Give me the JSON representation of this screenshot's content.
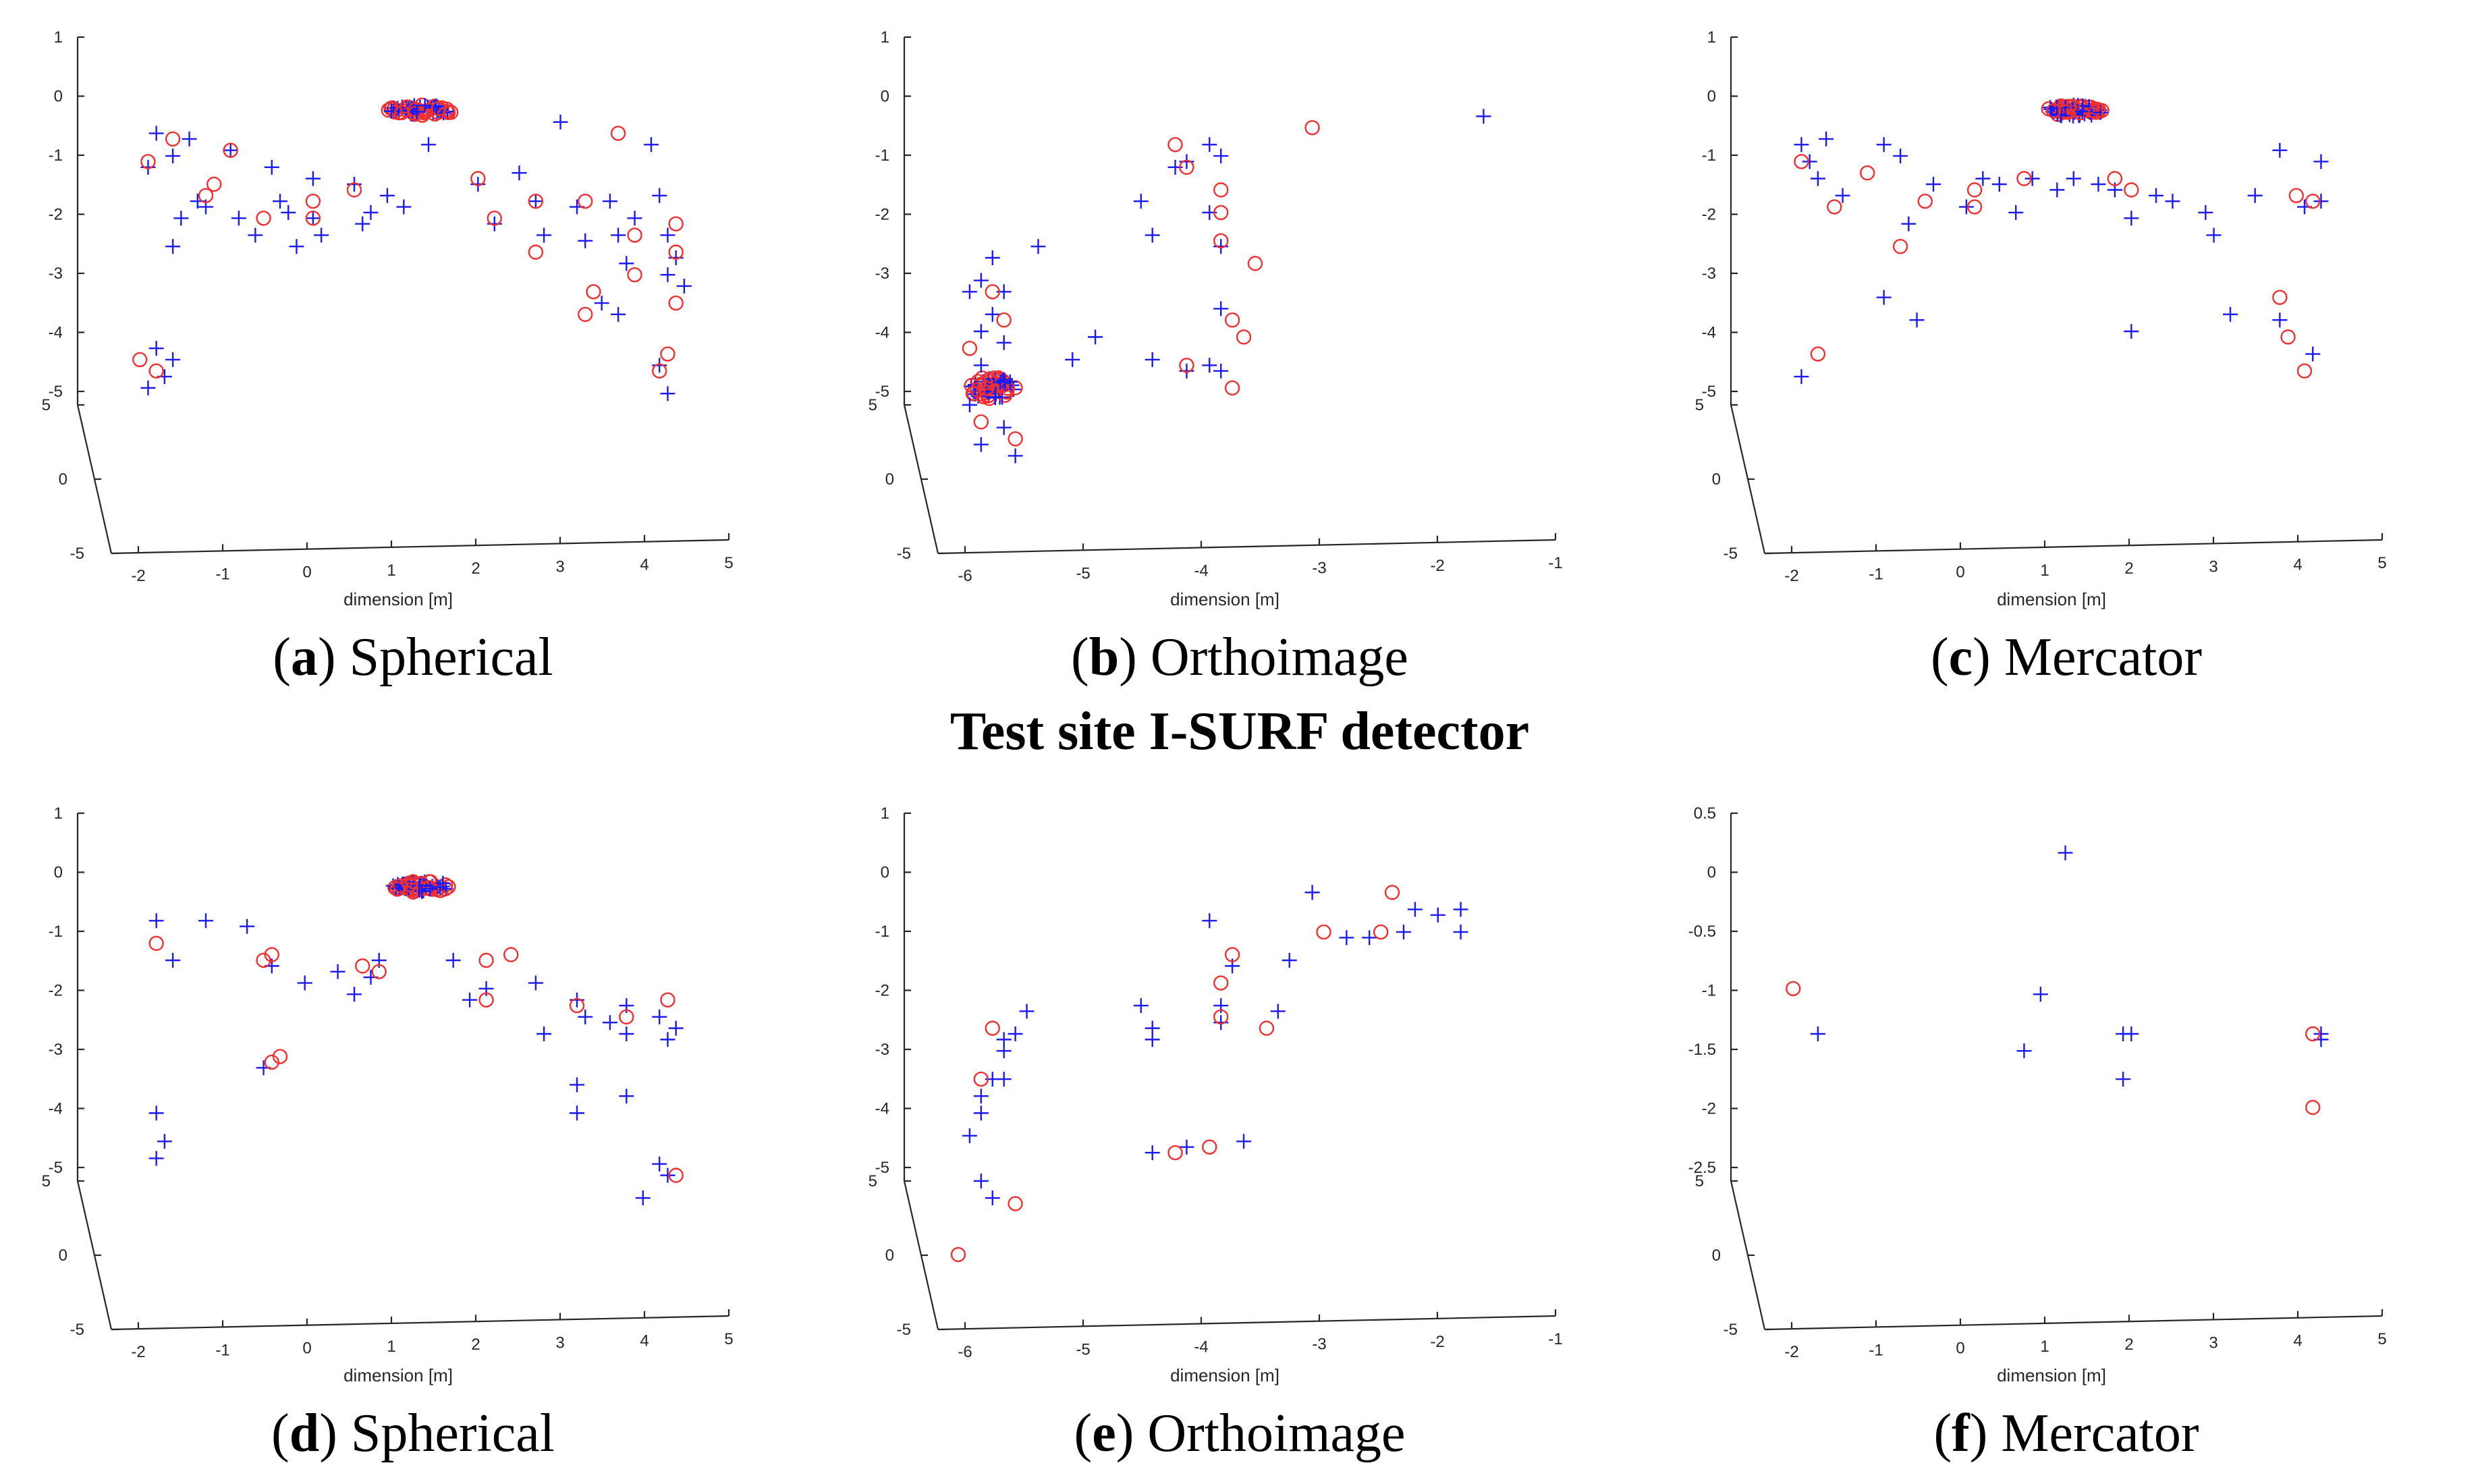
{
  "figure": {
    "middle_title": "Test site I-SURF detector",
    "colors": {
      "axis": "#262626",
      "plus_marker": "#1a1af5",
      "circle_marker": "#f03030"
    }
  },
  "chart_data": [
    {
      "type": "scatter",
      "id": "a",
      "caption": {
        "letter": "a",
        "open": "(",
        "close": ")",
        "text": " Spherical"
      },
      "xlabel": "dimension [m]",
      "x_ticks": [
        "-2",
        "-1",
        "0",
        "1",
        "2",
        "3",
        "4",
        "5"
      ],
      "xlim": [
        -2.2,
        5
      ],
      "z_ticks": [
        "1",
        "0",
        "-1",
        "-2",
        "-3",
        "-4",
        "-5"
      ],
      "zlim": [
        -5.5,
        1
      ],
      "y_ticks": [
        "5",
        "0",
        "-5"
      ],
      "plus_points": [
        [
          -2.0,
          -1.3
        ],
        [
          -1.9,
          -0.7
        ],
        [
          -1.7,
          -1.1
        ],
        [
          -1.6,
          -2.2
        ],
        [
          -1.7,
          -2.7
        ],
        [
          -1.5,
          -0.8
        ],
        [
          -1.4,
          -1.9
        ],
        [
          -1.3,
          -2.0
        ],
        [
          -1.0,
          -1.0
        ],
        [
          -0.9,
          -2.2
        ],
        [
          -0.7,
          -2.5
        ],
        [
          -0.5,
          -1.3
        ],
        [
          -0.4,
          -1.9
        ],
        [
          -0.3,
          -2.1
        ],
        [
          -0.2,
          -2.7
        ],
        [
          0.0,
          -1.5
        ],
        [
          0.0,
          -2.2
        ],
        [
          0.1,
          -2.5
        ],
        [
          0.5,
          -1.6
        ],
        [
          0.6,
          -2.3
        ],
        [
          0.7,
          -2.1
        ],
        [
          0.9,
          -1.8
        ],
        [
          1.1,
          -2.0
        ],
        [
          1.4,
          -0.9
        ],
        [
          2.0,
          -1.6
        ],
        [
          2.2,
          -2.3
        ],
        [
          2.5,
          -1.4
        ],
        [
          2.7,
          -1.9
        ],
        [
          2.8,
          -2.5
        ],
        [
          3.0,
          -0.5
        ],
        [
          3.2,
          -2.0
        ],
        [
          3.3,
          -2.6
        ],
        [
          3.5,
          -3.7
        ],
        [
          3.6,
          -1.9
        ],
        [
          3.7,
          -2.5
        ],
        [
          3.8,
          -3.0
        ],
        [
          3.9,
          -2.2
        ],
        [
          3.7,
          -3.9
        ],
        [
          4.2,
          -1.8
        ],
        [
          4.3,
          -2.5
        ],
        [
          4.3,
          -3.2
        ],
        [
          4.4,
          -2.9
        ],
        [
          4.5,
          -3.4
        ],
        [
          4.2,
          -4.8
        ],
        [
          4.3,
          -5.3
        ],
        [
          4.1,
          -0.9
        ],
        [
          -2.0,
          -5.2
        ],
        [
          -1.9,
          -4.5
        ],
        [
          -1.8,
          -5.0
        ],
        [
          -1.7,
          -4.7
        ]
      ],
      "circle_points": [
        [
          -2.0,
          -1.2
        ],
        [
          -1.7,
          -0.8
        ],
        [
          -1.3,
          -1.8
        ],
        [
          -1.0,
          -1.0
        ],
        [
          -1.2,
          -1.6
        ],
        [
          -0.6,
          -2.2
        ],
        [
          0.0,
          -1.9
        ],
        [
          0.0,
          -2.2
        ],
        [
          0.5,
          -1.7
        ],
        [
          2.0,
          -1.5
        ],
        [
          2.2,
          -2.2
        ],
        [
          2.7,
          -1.9
        ],
        [
          2.7,
          -2.8
        ],
        [
          3.3,
          -1.9
        ],
        [
          3.4,
          -3.5
        ],
        [
          3.3,
          -3.9
        ],
        [
          3.7,
          -0.7
        ],
        [
          3.9,
          -2.5
        ],
        [
          3.9,
          -3.2
        ],
        [
          4.4,
          -2.3
        ],
        [
          4.4,
          -2.8
        ],
        [
          4.4,
          -3.7
        ],
        [
          4.3,
          -4.6
        ],
        [
          4.2,
          -4.9
        ],
        [
          -2.1,
          -4.7
        ],
        [
          -1.9,
          -4.9
        ]
      ],
      "cluster": {
        "x": 1.3,
        "z": -0.3,
        "spread_x": 0.4,
        "spread_z": 0.1
      }
    },
    {
      "type": "scatter",
      "id": "b",
      "caption": {
        "letter": "b",
        "open": "(",
        "close": ")",
        "text": " Orthoimage"
      },
      "xlabel": "dimension [m]",
      "x_ticks": [
        "-6",
        "-5",
        "-4",
        "-3",
        "-2",
        "-1"
      ],
      "xlim": [
        -6.2,
        -1
      ],
      "z_ticks": [
        "1",
        "0",
        "-1",
        "-2",
        "-3",
        "-4",
        "-5"
      ],
      "zlim": [
        -5.5,
        1
      ],
      "y_ticks": [
        "5",
        "0",
        "-5"
      ],
      "plus_points": [
        [
          -6.1,
          -3.5
        ],
        [
          -6.0,
          -4.2
        ],
        [
          -6.0,
          -4.8
        ],
        [
          -6.1,
          -5.5
        ],
        [
          -5.9,
          -2.9
        ],
        [
          -5.8,
          -3.5
        ],
        [
          -5.9,
          -3.9
        ],
        [
          -5.8,
          -5.9
        ],
        [
          -6.0,
          -6.2
        ],
        [
          -5.7,
          -6.4
        ],
        [
          -5.5,
          -2.7
        ],
        [
          -5.2,
          -4.7
        ],
        [
          -5.0,
          -4.3
        ],
        [
          -4.5,
          -2.5
        ],
        [
          -4.6,
          -1.9
        ],
        [
          -4.3,
          -1.3
        ],
        [
          -4.2,
          -1.2
        ],
        [
          -4.0,
          -0.9
        ],
        [
          -3.9,
          -1.1
        ],
        [
          -4.0,
          -2.1
        ],
        [
          -3.9,
          -2.7
        ],
        [
          -3.9,
          -3.8
        ],
        [
          -3.9,
          -4.9
        ],
        [
          -4.5,
          -4.7
        ],
        [
          -4.2,
          -4.9
        ],
        [
          -4.0,
          -4.8
        ],
        [
          -1.6,
          -0.4
        ],
        [
          -6.0,
          -3.3
        ],
        [
          -5.8,
          -4.4
        ]
      ],
      "circle_points": [
        [
          -6.1,
          -4.5
        ],
        [
          -5.9,
          -3.5
        ],
        [
          -5.8,
          -4.0
        ],
        [
          -6.0,
          -5.8
        ],
        [
          -5.7,
          -6.1
        ],
        [
          -4.3,
          -0.9
        ],
        [
          -4.2,
          -1.3
        ],
        [
          -3.9,
          -1.7
        ],
        [
          -3.9,
          -2.1
        ],
        [
          -3.9,
          -2.6
        ],
        [
          -3.8,
          -4.0
        ],
        [
          -3.7,
          -4.3
        ],
        [
          -3.8,
          -5.2
        ],
        [
          -3.6,
          -3.0
        ],
        [
          -4.2,
          -4.8
        ],
        [
          -3.1,
          -0.6
        ]
      ],
      "cluster": {
        "x": -5.9,
        "z": -5.2,
        "spread_x": 0.2,
        "spread_z": 0.2
      }
    },
    {
      "type": "scatter",
      "id": "c",
      "caption": {
        "letter": "c",
        "open": "(",
        "close": ")",
        "text": " Mercator"
      },
      "xlabel": "dimension [m]",
      "x_ticks": [
        "-2",
        "-1",
        "0",
        "1",
        "2",
        "3",
        "4",
        "5"
      ],
      "xlim": [
        -2.2,
        5
      ],
      "z_ticks": [
        "1",
        "0",
        "-1",
        "-2",
        "-3",
        "-4",
        "-5"
      ],
      "zlim": [
        -5.5,
        1
      ],
      "y_ticks": [
        "5",
        "0",
        "-5"
      ],
      "plus_points": [
        [
          -2.0,
          -0.9
        ],
        [
          -1.9,
          -1.2
        ],
        [
          -1.7,
          -0.8
        ],
        [
          -1.8,
          -1.5
        ],
        [
          -1.5,
          -1.8
        ],
        [
          -1.0,
          -0.9
        ],
        [
          -0.8,
          -1.1
        ],
        [
          -0.7,
          -2.3
        ],
        [
          -0.4,
          -1.6
        ],
        [
          0.0,
          -2.0
        ],
        [
          0.2,
          -1.5
        ],
        [
          0.4,
          -1.6
        ],
        [
          0.6,
          -2.1
        ],
        [
          0.8,
          -1.5
        ],
        [
          1.1,
          -1.7
        ],
        [
          1.3,
          -1.5
        ],
        [
          1.6,
          -1.6
        ],
        [
          1.8,
          -1.7
        ],
        [
          2.0,
          -2.2
        ],
        [
          2.3,
          -1.8
        ],
        [
          2.5,
          -1.9
        ],
        [
          2.9,
          -2.1
        ],
        [
          3.0,
          -2.5
        ],
        [
          3.5,
          -1.8
        ],
        [
          3.8,
          -1.0
        ],
        [
          4.1,
          -2.0
        ],
        [
          4.3,
          -1.9
        ],
        [
          4.3,
          -1.2
        ],
        [
          -0.6,
          -4.0
        ],
        [
          2.0,
          -4.2
        ],
        [
          3.2,
          -3.9
        ],
        [
          3.8,
          -4.0
        ],
        [
          4.2,
          -4.6
        ],
        [
          -2.0,
          -5.0
        ],
        [
          -1.0,
          -3.6
        ]
      ],
      "circle_points": [
        [
          -2.0,
          -1.2
        ],
        [
          -1.6,
          -2.0
        ],
        [
          -1.2,
          -1.4
        ],
        [
          -0.8,
          -2.7
        ],
        [
          -0.5,
          -1.9
        ],
        [
          0.1,
          -1.7
        ],
        [
          0.1,
          -2.0
        ],
        [
          0.7,
          -1.5
        ],
        [
          1.8,
          -1.5
        ],
        [
          2.0,
          -1.7
        ],
        [
          4.0,
          -1.8
        ],
        [
          4.2,
          -1.9
        ],
        [
          3.8,
          -3.6
        ],
        [
          3.9,
          -4.3
        ],
        [
          4.1,
          -4.9
        ],
        [
          -1.8,
          -4.6
        ]
      ],
      "cluster": {
        "x": 1.3,
        "z": -0.3,
        "spread_x": 0.35,
        "spread_z": 0.1
      }
    },
    {
      "type": "scatter",
      "id": "d",
      "caption": {
        "letter": "d",
        "open": "(",
        "close": ")",
        "text": " Spherical"
      },
      "xlabel": "dimension [m]",
      "x_ticks": [
        "-2",
        "-1",
        "0",
        "1",
        "2",
        "3",
        "4",
        "5"
      ],
      "xlim": [
        -2.2,
        5
      ],
      "z_ticks": [
        "1",
        "0",
        "-1",
        "-2",
        "-3",
        "-4",
        "-5"
      ],
      "zlim": [
        -5.5,
        1
      ],
      "y_ticks": [
        "5",
        "0",
        "-5"
      ],
      "plus_points": [
        [
          -1.9,
          -0.9
        ],
        [
          -1.7,
          -1.6
        ],
        [
          -1.3,
          -0.9
        ],
        [
          -0.8,
          -1.0
        ],
        [
          -0.5,
          -1.7
        ],
        [
          -0.1,
          -2.0
        ],
        [
          0.3,
          -1.8
        ],
        [
          0.5,
          -2.2
        ],
        [
          0.7,
          -1.9
        ],
        [
          0.8,
          -1.6
        ],
        [
          1.7,
          -1.6
        ],
        [
          1.9,
          -2.3
        ],
        [
          2.1,
          -2.1
        ],
        [
          2.7,
          -2.0
        ],
        [
          2.8,
          -2.9
        ],
        [
          3.2,
          -2.3
        ],
        [
          3.3,
          -2.6
        ],
        [
          3.2,
          -3.8
        ],
        [
          3.2,
          -4.3
        ],
        [
          3.6,
          -2.7
        ],
        [
          3.8,
          -2.4
        ],
        [
          3.8,
          -2.9
        ],
        [
          4.2,
          -2.6
        ],
        [
          4.3,
          -3.0
        ],
        [
          4.4,
          -2.8
        ],
        [
          3.8,
          -4.0
        ],
        [
          4.2,
          -5.2
        ],
        [
          4.3,
          -5.4
        ],
        [
          4.0,
          -5.8
        ],
        [
          -1.8,
          -4.8
        ],
        [
          -1.9,
          -5.1
        ],
        [
          -0.6,
          -3.5
        ],
        [
          -1.9,
          -4.3
        ]
      ],
      "circle_points": [
        [
          -1.9,
          -1.3
        ],
        [
          -0.6,
          -1.6
        ],
        [
          -0.5,
          -1.5
        ],
        [
          0.6,
          -1.7
        ],
        [
          0.8,
          -1.8
        ],
        [
          2.1,
          -1.6
        ],
        [
          2.4,
          -1.5
        ],
        [
          2.1,
          -2.3
        ],
        [
          3.2,
          -2.4
        ],
        [
          3.8,
          -2.6
        ],
        [
          4.3,
          -2.3
        ],
        [
          4.4,
          -5.4
        ],
        [
          -0.5,
          -3.4
        ],
        [
          -0.4,
          -3.3
        ]
      ],
      "cluster": {
        "x": 1.3,
        "z": -0.3,
        "spread_x": 0.35,
        "spread_z": 0.1
      }
    },
    {
      "type": "scatter",
      "id": "e",
      "caption": {
        "letter": "e",
        "open": "(",
        "close": ")",
        "text": " Orthoimage"
      },
      "xlabel": "dimension [m]",
      "x_ticks": [
        "-6",
        "-5",
        "-4",
        "-3",
        "-2",
        "-1"
      ],
      "xlim": [
        -6.2,
        -1
      ],
      "z_ticks": [
        "1",
        "0",
        "-1",
        "-2",
        "-3",
        "-4",
        "-5"
      ],
      "zlim": [
        -5.5,
        1
      ],
      "y_ticks": [
        "5",
        "0",
        "-5"
      ],
      "plus_points": [
        [
          -6.0,
          -4.0
        ],
        [
          -5.9,
          -3.7
        ],
        [
          -6.0,
          -4.3
        ],
        [
          -6.1,
          -4.7
        ],
        [
          -5.8,
          -3.0
        ],
        [
          -5.8,
          -3.2
        ],
        [
          -5.7,
          -2.9
        ],
        [
          -5.6,
          -2.5
        ],
        [
          -5.8,
          -3.7
        ],
        [
          -6.0,
          -5.5
        ],
        [
          -5.9,
          -5.8
        ],
        [
          -4.6,
          -2.4
        ],
        [
          -4.5,
          -2.8
        ],
        [
          -4.5,
          -3.0
        ],
        [
          -4.5,
          -5.0
        ],
        [
          -4.2,
          -4.9
        ],
        [
          -4.0,
          -0.9
        ],
        [
          -3.9,
          -2.4
        ],
        [
          -3.8,
          -1.7
        ],
        [
          -3.9,
          -2.7
        ],
        [
          -3.4,
          -2.5
        ],
        [
          -3.3,
          -1.6
        ],
        [
          -3.1,
          -0.4
        ],
        [
          -2.8,
          -1.2
        ],
        [
          -2.6,
          -1.2
        ],
        [
          -2.3,
          -1.1
        ],
        [
          -2.2,
          -0.7
        ],
        [
          -2.0,
          -0.8
        ],
        [
          -1.8,
          -0.7
        ],
        [
          -1.8,
          -1.1
        ],
        [
          -3.7,
          -4.8
        ]
      ],
      "circle_points": [
        [
          -5.9,
          -2.8
        ],
        [
          -6.0,
          -3.7
        ],
        [
          -5.7,
          -5.9
        ],
        [
          -6.2,
          -6.8
        ],
        [
          -4.3,
          -5.0
        ],
        [
          -4.0,
          -4.9
        ],
        [
          -3.8,
          -1.5
        ],
        [
          -3.9,
          -2.0
        ],
        [
          -3.9,
          -2.6
        ],
        [
          -3.5,
          -2.8
        ],
        [
          -3.0,
          -1.1
        ],
        [
          -2.5,
          -1.1
        ],
        [
          -2.4,
          -0.4
        ]
      ],
      "cluster": null
    },
    {
      "type": "scatter",
      "id": "f",
      "caption": {
        "letter": "f",
        "open": "(",
        "close": ")",
        "text": " Mercator"
      },
      "xlabel": "dimension [m]",
      "x_ticks": [
        "-2",
        "-1",
        "0",
        "1",
        "2",
        "3",
        "4",
        "5"
      ],
      "xlim": [
        -2.2,
        5
      ],
      "z_ticks": [
        "0.5",
        "0",
        "-0.5",
        "-1",
        "-1.5",
        "-2",
        "-2.5"
      ],
      "zlim": [
        -2.75,
        0.5
      ],
      "y_ticks": [
        "5",
        "0",
        "-5"
      ],
      "plus_points": [
        [
          -1.8,
          -1.45
        ],
        [
          0.7,
          -1.6
        ],
        [
          0.9,
          -1.1
        ],
        [
          1.2,
          0.15
        ],
        [
          1.9,
          -1.45
        ],
        [
          2.0,
          -1.45
        ],
        [
          1.9,
          -1.85
        ],
        [
          4.3,
          -1.45
        ],
        [
          4.3,
          -1.5
        ]
      ],
      "circle_points": [
        [
          -2.1,
          -1.05
        ],
        [
          4.2,
          -1.45
        ],
        [
          4.2,
          -2.1
        ]
      ],
      "cluster": null
    }
  ]
}
